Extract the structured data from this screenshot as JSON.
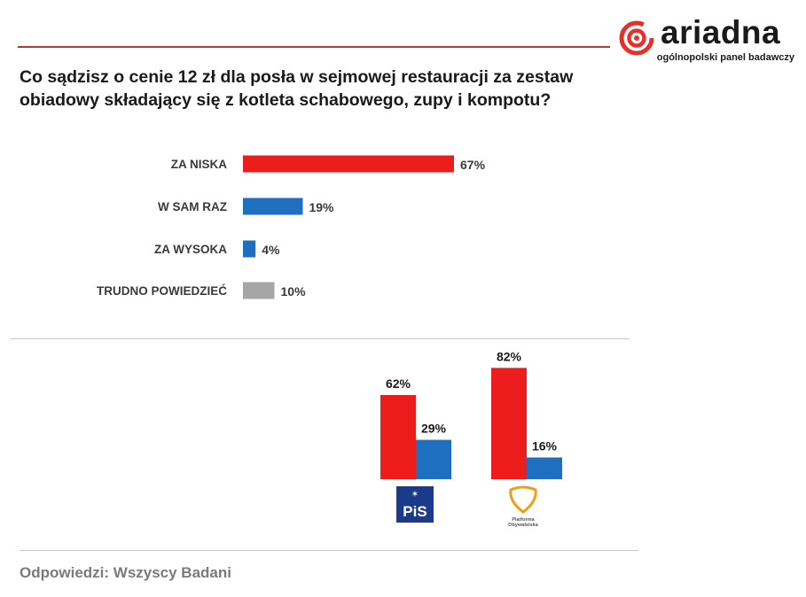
{
  "header": {
    "title": "Co sądzisz o cenie 12 zł dla posła w sejmowej restauracji za zestaw obiadowy składający się z kotleta schabowego, zupy i kompotu?"
  },
  "logo": {
    "name": "ariadna",
    "tagline": "ogólnopolski panel badawczy",
    "color": "#e8302a"
  },
  "chart_data": [
    {
      "type": "bar",
      "orientation": "horizontal",
      "categories": [
        "ZA NISKA",
        "W SAM RAZ",
        "ZA WYSOKA",
        "TRUDNO POWIEDZIEĆ"
      ],
      "values": [
        67,
        19,
        4,
        10
      ],
      "value_labels": [
        "67%",
        "19%",
        "4%",
        "10%"
      ],
      "colors": [
        "#ee1d1d",
        "#1f6fc0",
        "#1f6fc0",
        "#a6a6a6"
      ],
      "xlim": [
        0,
        100
      ],
      "grid": false
    },
    {
      "type": "bar",
      "categories": [
        "PiS",
        "Platforma Obywatelska"
      ],
      "series": [
        {
          "values": [
            62,
            82
          ],
          "value_labels": [
            "62%",
            "82%"
          ],
          "color": "#ee1d1d"
        },
        {
          "values": [
            29,
            16
          ],
          "value_labels": [
            "29%",
            "16%"
          ],
          "color": "#1f6fc0"
        }
      ],
      "ylim": [
        0,
        100
      ],
      "grid": false
    }
  ],
  "party_logos": {
    "pis": {
      "text": "PiS",
      "color": "#1a3a8a"
    },
    "po": {
      "line1": "Platforma",
      "line2": "Obywatelska",
      "color": "#f39c12"
    }
  },
  "footer": {
    "text": "Odpowiedzi: Wszyscy Badani"
  }
}
